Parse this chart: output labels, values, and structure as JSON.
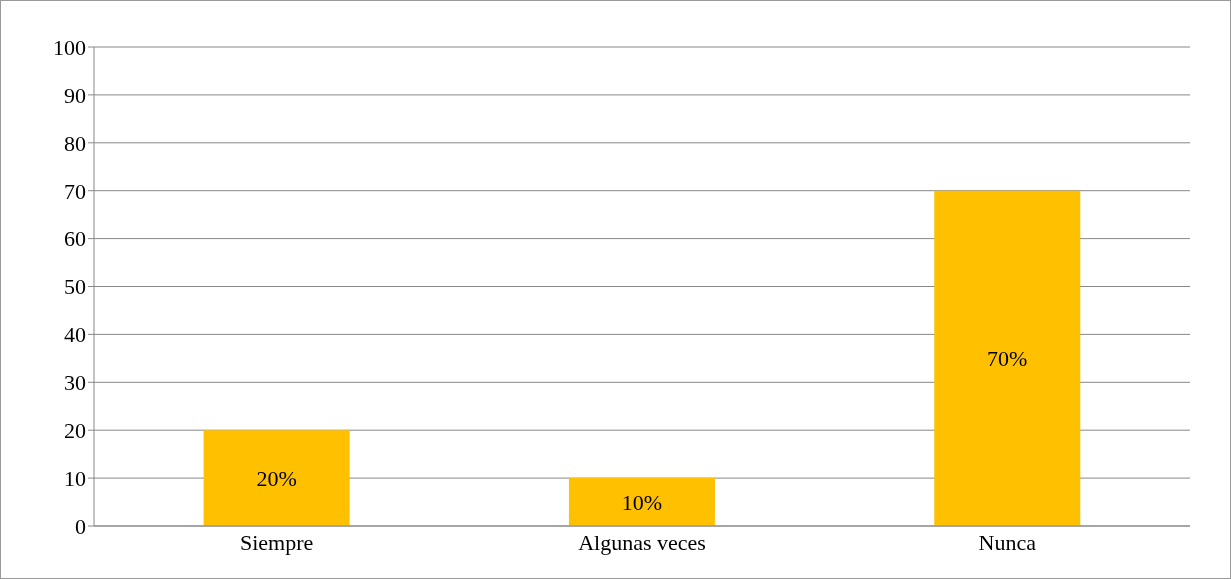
{
  "chart_data": {
    "type": "bar",
    "categories": [
      "Siempre",
      "Algunas veces",
      "Nunca"
    ],
    "values": [
      20,
      10,
      70
    ],
    "value_labels": [
      "20%",
      "10%",
      "70%"
    ],
    "color": "#ffc000",
    "ylim": [
      0,
      100
    ],
    "yticks": [
      0,
      10,
      20,
      30,
      40,
      50,
      60,
      70,
      80,
      90,
      100
    ],
    "grid": "y"
  }
}
